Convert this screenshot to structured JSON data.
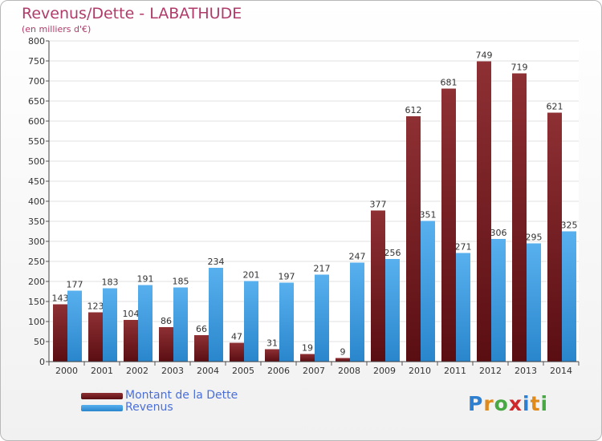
{
  "chart_data": {
    "type": "bar",
    "title": "Revenus/Dette - LABATHUDE",
    "subtitle": "(en milliers d'€)",
    "categories": [
      "2000",
      "2001",
      "2002",
      "2003",
      "2004",
      "2005",
      "2006",
      "2007",
      "2008",
      "2009",
      "2010",
      "2011",
      "2012",
      "2013",
      "2014"
    ],
    "series": [
      {
        "name": "Montant de la Dette",
        "color": "#7a1e22",
        "values": [
          143,
          123,
          104,
          86,
          66,
          47,
          31,
          19,
          9,
          377,
          612,
          681,
          749,
          719,
          621
        ]
      },
      {
        "name": "Revenus",
        "color": "#3a9ce2",
        "values": [
          177,
          183,
          191,
          185,
          234,
          201,
          197,
          217,
          247,
          256,
          351,
          271,
          306,
          295,
          325
        ]
      }
    ],
    "ylim": [
      0,
      800
    ],
    "yticks": [
      0,
      50,
      100,
      150,
      200,
      250,
      300,
      350,
      400,
      450,
      500,
      550,
      600,
      650,
      700,
      750,
      800
    ],
    "grid": true,
    "legend": "bottom-left"
  },
  "logo": {
    "letters": [
      "P",
      "r",
      "o",
      "x",
      "i",
      "t",
      "i"
    ],
    "colors": [
      "#2f7fd0",
      "#e08a1c",
      "#48a843",
      "#d0282a",
      "#2f7fd0",
      "#e08a1c",
      "#48a843"
    ]
  }
}
